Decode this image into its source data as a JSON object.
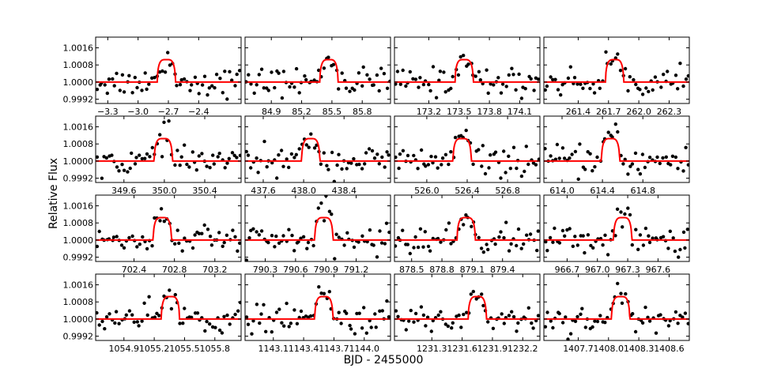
{
  "xlabel": "BJD - 2455000",
  "ylabel": "Relative Flux",
  "chart_data": {
    "type": "scatter",
    "xlabel": "BJD - 2455000",
    "ylabel": "Relative Flux",
    "ylim": [
      0.999,
      1.0021
    ],
    "yticks": [
      0.9992,
      1.0,
      1.0008,
      1.0016
    ],
    "ytick_labels": [
      "0.9992",
      "1.0000",
      "1.0008",
      "1.0016"
    ],
    "grid": false,
    "model": {
      "name": "",
      "color": "#ff0000",
      "depth": 0.00105,
      "duration": 0.18
    },
    "point_color": "#000000",
    "panels": [
      {
        "xlim": [
          -3.42,
          -1.98
        ],
        "center": -2.72,
        "xticks": [
          -3.3,
          -3.0,
          -2.7,
          -2.4
        ],
        "xtick_labels": [
          "−3.3",
          "−3.0",
          "−2.7",
          "−2.4"
        ]
      },
      {
        "xlim": [
          84.64,
          86.08
        ],
        "center": 85.47,
        "xticks": [
          84.9,
          85.2,
          85.5,
          85.8
        ],
        "xtick_labels": [
          "84.9",
          "85.2",
          "85.5",
          "85.8"
        ]
      },
      {
        "xlim": [
          172.86,
          174.3
        ],
        "center": 173.55,
        "xticks": [
          173.2,
          173.5,
          173.8,
          174.1
        ],
        "xtick_labels": [
          "173.2",
          "173.5",
          "173.8",
          "174.1"
        ]
      },
      {
        "xlim": [
          261.06,
          262.5
        ],
        "center": 261.76,
        "xticks": [
          261.4,
          261.7,
          262.0,
          262.3
        ],
        "xtick_labels": [
          "261.4",
          "261.7",
          "262.0",
          "262.3"
        ]
      },
      {
        "xlim": [
          349.32,
          350.76
        ],
        "center": 349.99,
        "xticks": [
          349.6,
          350.0,
          350.4
        ],
        "xtick_labels": [
          "349.6",
          "350.0",
          "350.4"
        ]
      },
      {
        "xlim": [
          437.42,
          438.86
        ],
        "center": 438.07,
        "xticks": [
          437.6,
          438.0,
          438.4
        ],
        "xtick_labels": [
          "437.6",
          "438.0",
          "438.4"
        ]
      },
      {
        "xlim": [
          525.68,
          527.12
        ],
        "center": 526.35,
        "xticks": [
          526.0,
          526.4,
          526.8
        ],
        "xtick_labels": [
          "526.0",
          "526.4",
          "526.8"
        ]
      },
      {
        "xlim": [
          613.82,
          615.26
        ],
        "center": 614.48,
        "xticks": [
          614.0,
          614.4,
          614.8
        ],
        "xtick_labels": [
          "614.0",
          "614.4",
          "614.8"
        ]
      },
      {
        "xlim": [
          702.02,
          703.46
        ],
        "center": 702.68,
        "xticks": [
          702.4,
          702.8,
          703.2
        ],
        "xtick_labels": [
          "702.4",
          "702.8",
          "703.2"
        ]
      },
      {
        "xlim": [
          790.1,
          791.54
        ],
        "center": 790.88,
        "xticks": [
          790.3,
          790.6,
          790.9,
          791.2
        ],
        "xtick_labels": [
          "790.3",
          "790.6",
          "790.9",
          "791.2"
        ]
      },
      {
        "xlim": [
          878.33,
          879.77
        ],
        "center": 879.04,
        "xticks": [
          878.5,
          878.8,
          879.1,
          879.4
        ],
        "xtick_labels": [
          "878.5",
          "878.8",
          "879.1",
          "879.4"
        ]
      },
      {
        "xlim": [
          966.47,
          967.91
        ],
        "center": 967.25,
        "xticks": [
          966.7,
          967.0,
          967.3,
          967.6
        ],
        "xtick_labels": [
          "966.7",
          "967.0",
          "967.3",
          "967.6"
        ]
      },
      {
        "xlim": [
          1054.62,
          1056.06
        ],
        "center": 1055.36,
        "xticks": [
          1054.9,
          1055.2,
          1055.5,
          1055.8
        ],
        "xtick_labels": [
          "1054.9",
          "1055.2",
          "1055.5",
          "1055.8"
        ]
      },
      {
        "xlim": [
          1142.82,
          1144.26
        ],
        "center": 1143.6,
        "xticks": [
          1143.1,
          1143.4,
          1143.7,
          1144.0
        ],
        "xtick_labels": [
          "1143.1",
          "1143.4",
          "1143.7",
          "1144.0"
        ]
      },
      {
        "xlim": [
          1230.93,
          1232.37
        ],
        "center": 1231.75,
        "xticks": [
          1231.3,
          1231.6,
          1231.9,
          1232.2
        ],
        "xtick_labels": [
          "1231.3",
          "1231.6",
          "1231.9",
          "1232.2"
        ]
      },
      {
        "xlim": [
          1407.36,
          1408.8
        ],
        "center": 1408.12,
        "xticks": [
          1407.7,
          1408.0,
          1408.3,
          1408.6
        ],
        "xtick_labels": [
          "1407.7",
          "1408.0",
          "1408.3",
          "1408.6"
        ]
      }
    ]
  }
}
